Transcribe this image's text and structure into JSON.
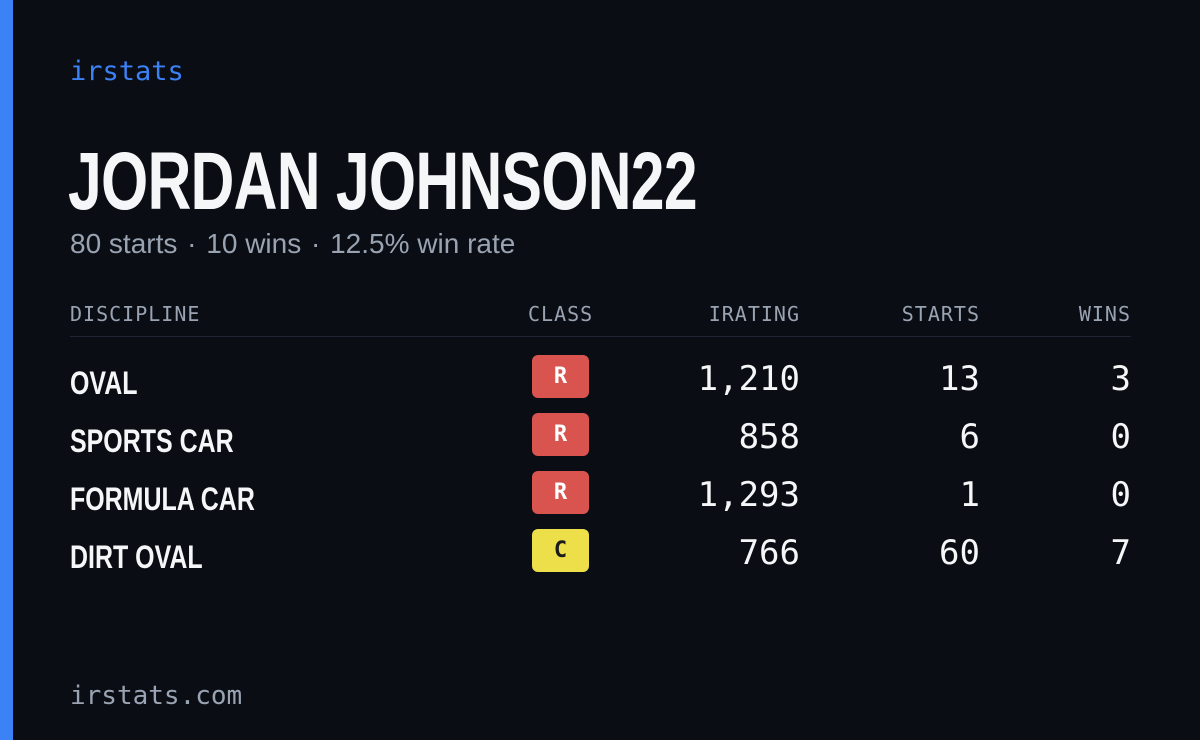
{
  "brand": "irstats",
  "player": {
    "name": "JORDAN JOHNSON22"
  },
  "summary": {
    "starts": "80 starts",
    "wins": "10 wins",
    "win_rate": "12.5% win rate",
    "separator": "·"
  },
  "table": {
    "headers": {
      "discipline": "DISCIPLINE",
      "class": "CLASS",
      "irating": "IRATING",
      "starts": "STARTS",
      "wins": "WINS"
    },
    "rows": [
      {
        "discipline": "OVAL",
        "class": "R",
        "class_color": "#d9534f",
        "class_text_color": "#ffffff",
        "irating": "1,210",
        "starts": "13",
        "wins": "3"
      },
      {
        "discipline": "SPORTS CAR",
        "class": "R",
        "class_color": "#d9534f",
        "class_text_color": "#ffffff",
        "irating": "858",
        "starts": "6",
        "wins": "0"
      },
      {
        "discipline": "FORMULA CAR",
        "class": "R",
        "class_color": "#d9534f",
        "class_text_color": "#ffffff",
        "irating": "1,293",
        "starts": "1",
        "wins": "0"
      },
      {
        "discipline": "DIRT OVAL",
        "class": "C",
        "class_color": "#ecdf4a",
        "class_text_color": "#1a1a1a",
        "irating": "766",
        "starts": "60",
        "wins": "7"
      }
    ]
  },
  "footer": "irstats.com",
  "colors": {
    "background": "#0a0d14",
    "accent": "#3b82f6",
    "text_primary": "#f5f6f8",
    "text_muted": "#9aa3b2"
  }
}
